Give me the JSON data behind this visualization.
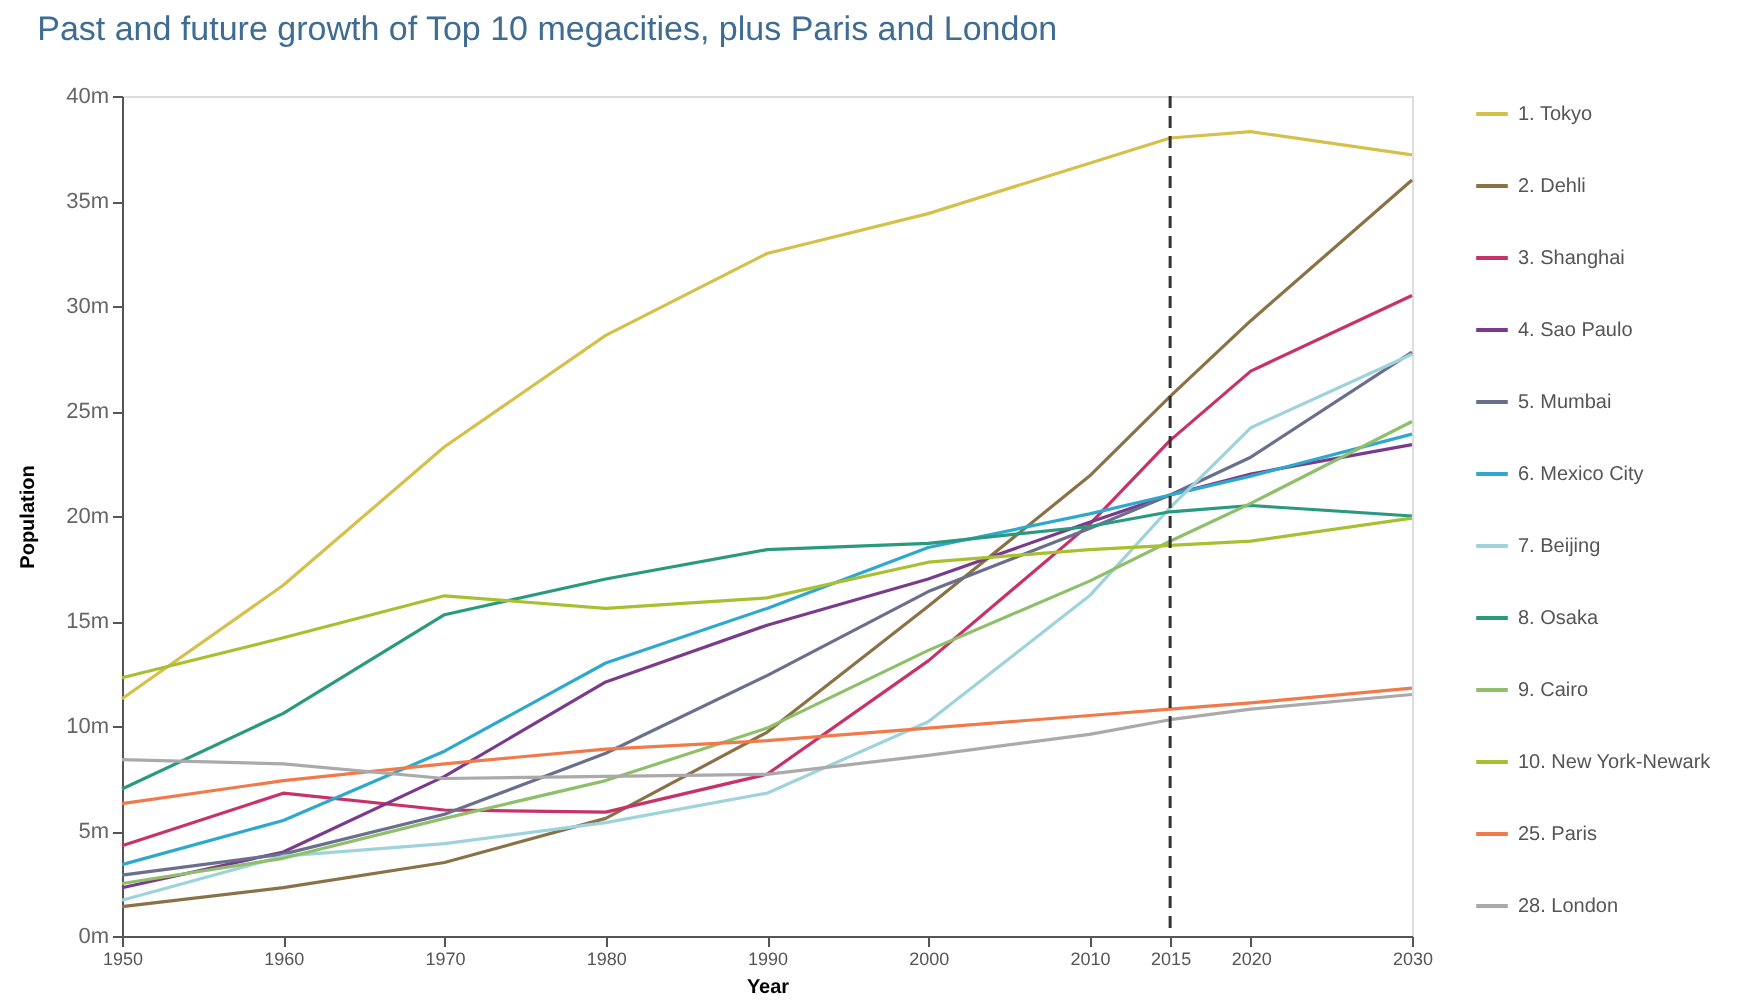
{
  "chart_data": {
    "type": "line",
    "title": "Past and future growth of Top 10 megacities, plus Paris and London",
    "xlabel": "Year",
    "ylabel": "Population",
    "x": [
      1950,
      1960,
      1970,
      1980,
      1990,
      2000,
      2010,
      2015,
      2020,
      2030
    ],
    "xlim": [
      1950,
      2030
    ],
    "xticks": [
      1950,
      1960,
      1970,
      1980,
      1990,
      2000,
      2010,
      2015,
      2020,
      2030
    ],
    "ylim": [
      0,
      40
    ],
    "yticks": [
      {
        "value": 0,
        "label": "0m"
      },
      {
        "value": 5,
        "label": "5m"
      },
      {
        "value": 10,
        "label": "10m"
      },
      {
        "value": 15,
        "label": "15m"
      },
      {
        "value": 20,
        "label": "20m"
      },
      {
        "value": 25,
        "label": "25m"
      },
      {
        "value": 30,
        "label": "30m"
      },
      {
        "value": 35,
        "label": "35m"
      },
      {
        "value": 40,
        "label": "40m"
      }
    ],
    "grid": false,
    "legend": "right",
    "marker": "none",
    "line_style": "solid",
    "ref_lines": [
      {
        "axis": "x",
        "value": 2015,
        "color": "#333333",
        "line_style": "dashed"
      }
    ],
    "series": [
      {
        "name": "1. Tokyo",
        "color": "#d4c04a",
        "values": [
          11.3,
          16.7,
          23.3,
          28.6,
          32.5,
          34.4,
          36.8,
          38.0,
          38.3,
          37.2
        ]
      },
      {
        "name": "2. Dehli",
        "color": "#8b7146",
        "values": [
          1.4,
          2.3,
          3.5,
          5.6,
          9.7,
          15.7,
          21.9,
          25.7,
          29.3,
          36.0
        ]
      },
      {
        "name": "3. Shanghai",
        "color": "#c8326b",
        "values": [
          4.3,
          6.8,
          6.0,
          5.9,
          7.7,
          13.1,
          19.6,
          23.6,
          26.9,
          30.5
        ]
      },
      {
        "name": "4. Sao Paulo",
        "color": "#7a3b8c",
        "values": [
          2.3,
          4.0,
          7.6,
          12.1,
          14.8,
          17.0,
          19.7,
          21.0,
          22.0,
          23.4
        ]
      },
      {
        "name": "5. Mumbai",
        "color": "#6b6f8e",
        "values": [
          2.9,
          3.9,
          5.8,
          8.7,
          12.4,
          16.4,
          19.4,
          21.0,
          22.8,
          27.8
        ]
      },
      {
        "name": "6. Mexico City",
        "color": "#2fa8d0",
        "values": [
          3.4,
          5.5,
          8.8,
          13.0,
          15.6,
          18.5,
          20.1,
          21.0,
          21.9,
          23.9
        ]
      },
      {
        "name": "7. Beijing",
        "color": "#9fd3dc",
        "values": [
          1.7,
          3.8,
          4.4,
          5.4,
          6.8,
          10.2,
          16.2,
          20.4,
          24.2,
          27.7
        ]
      },
      {
        "name": "8. Osaka",
        "color": "#2a9a7e",
        "values": [
          7.0,
          10.6,
          15.3,
          17.0,
          18.4,
          18.7,
          19.5,
          20.2,
          20.5,
          20.0
        ]
      },
      {
        "name": "9. Cairo",
        "color": "#8fbf6a",
        "values": [
          2.5,
          3.7,
          5.6,
          7.4,
          9.9,
          13.6,
          16.9,
          18.8,
          20.6,
          24.5
        ]
      },
      {
        "name": "10. New York-Newark",
        "color": "#a8c030",
        "values": [
          12.3,
          14.2,
          16.2,
          15.6,
          16.1,
          17.8,
          18.4,
          18.6,
          18.8,
          19.9
        ]
      },
      {
        "name": "25. Paris",
        "color": "#f07a4a",
        "values": [
          6.3,
          7.4,
          8.2,
          8.9,
          9.3,
          9.9,
          10.5,
          10.8,
          11.1,
          11.8
        ]
      },
      {
        "name": "28. London",
        "color": "#aaaaaa",
        "values": [
          8.4,
          8.2,
          7.5,
          7.6,
          7.7,
          8.6,
          9.6,
          10.3,
          10.8,
          11.5
        ]
      }
    ]
  }
}
